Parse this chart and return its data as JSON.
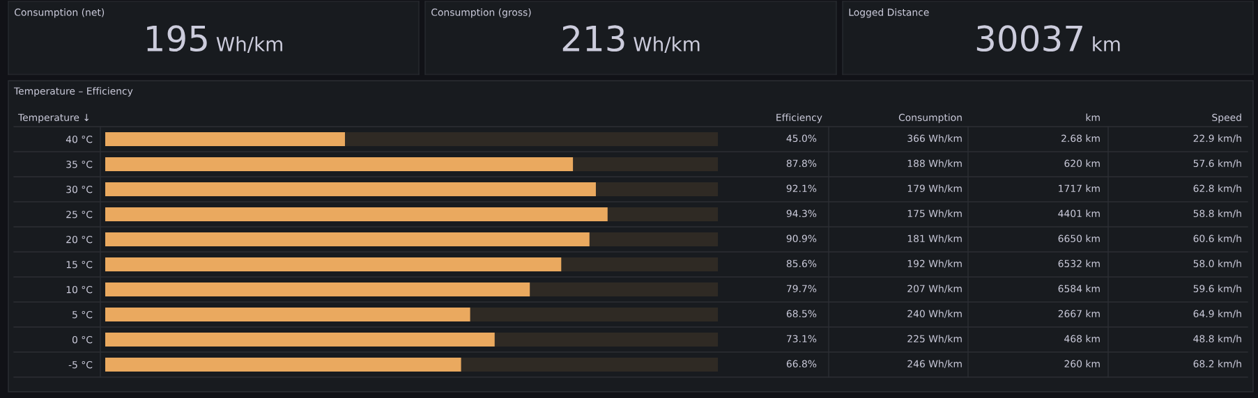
{
  "chart_data": [
    {
      "type": "other",
      "title": "Consumption (net)",
      "annotations": [
        "195",
        "Wh/km"
      ]
    },
    {
      "type": "other",
      "title": "Consumption (gross)",
      "annotations": [
        "213",
        "Wh/km"
      ]
    },
    {
      "type": "other",
      "title": "Logged Distance",
      "annotations": [
        "30037",
        "km"
      ]
    },
    {
      "type": "bar",
      "orientation": "horizontal",
      "title": "Temperature – Efficiency",
      "ylabel": "Temperature ↓",
      "categories": [
        "40 °C",
        "35 °C",
        "30 °C",
        "25 °C",
        "20 °C",
        "15 °C",
        "10 °C",
        "5 °C",
        "0 °C",
        "-5 °C"
      ],
      "values": [
        45.0,
        87.8,
        92.1,
        94.3,
        90.9,
        85.6,
        79.7,
        68.5,
        73.1,
        66.8
      ],
      "value_labels": [
        "45.0%",
        "87.8%",
        "92.1%",
        "94.3%",
        "90.9%",
        "85.6%",
        "79.7%",
        "68.5%",
        "73.1%",
        "66.8%"
      ],
      "color": "#eaa95f",
      "xlim": [
        0,
        115
      ],
      "tick_labels": "y",
      "annotations": [
        "Efficiency",
        "Consumption",
        "km",
        "Speed",
        "366 Wh/km",
        "2.68 km",
        "22.9 km/h",
        "188 Wh/km",
        "620 km",
        "57.6 km/h",
        "179 Wh/km",
        "1717 km",
        "62.8 km/h",
        "175 Wh/km",
        "4401 km",
        "58.8 km/h",
        "181 Wh/km",
        "6650 km",
        "60.6 km/h",
        "192 Wh/km",
        "6532 km",
        "58.0 km/h",
        "207 Wh/km",
        "6584 km",
        "59.6 km/h",
        "240 Wh/km",
        "2667 km",
        "64.9 km/h",
        "225 Wh/km",
        "468 km",
        "48.8 km/h",
        "246 Wh/km",
        "260 km",
        "68.2 km/h"
      ]
    }
  ]
}
